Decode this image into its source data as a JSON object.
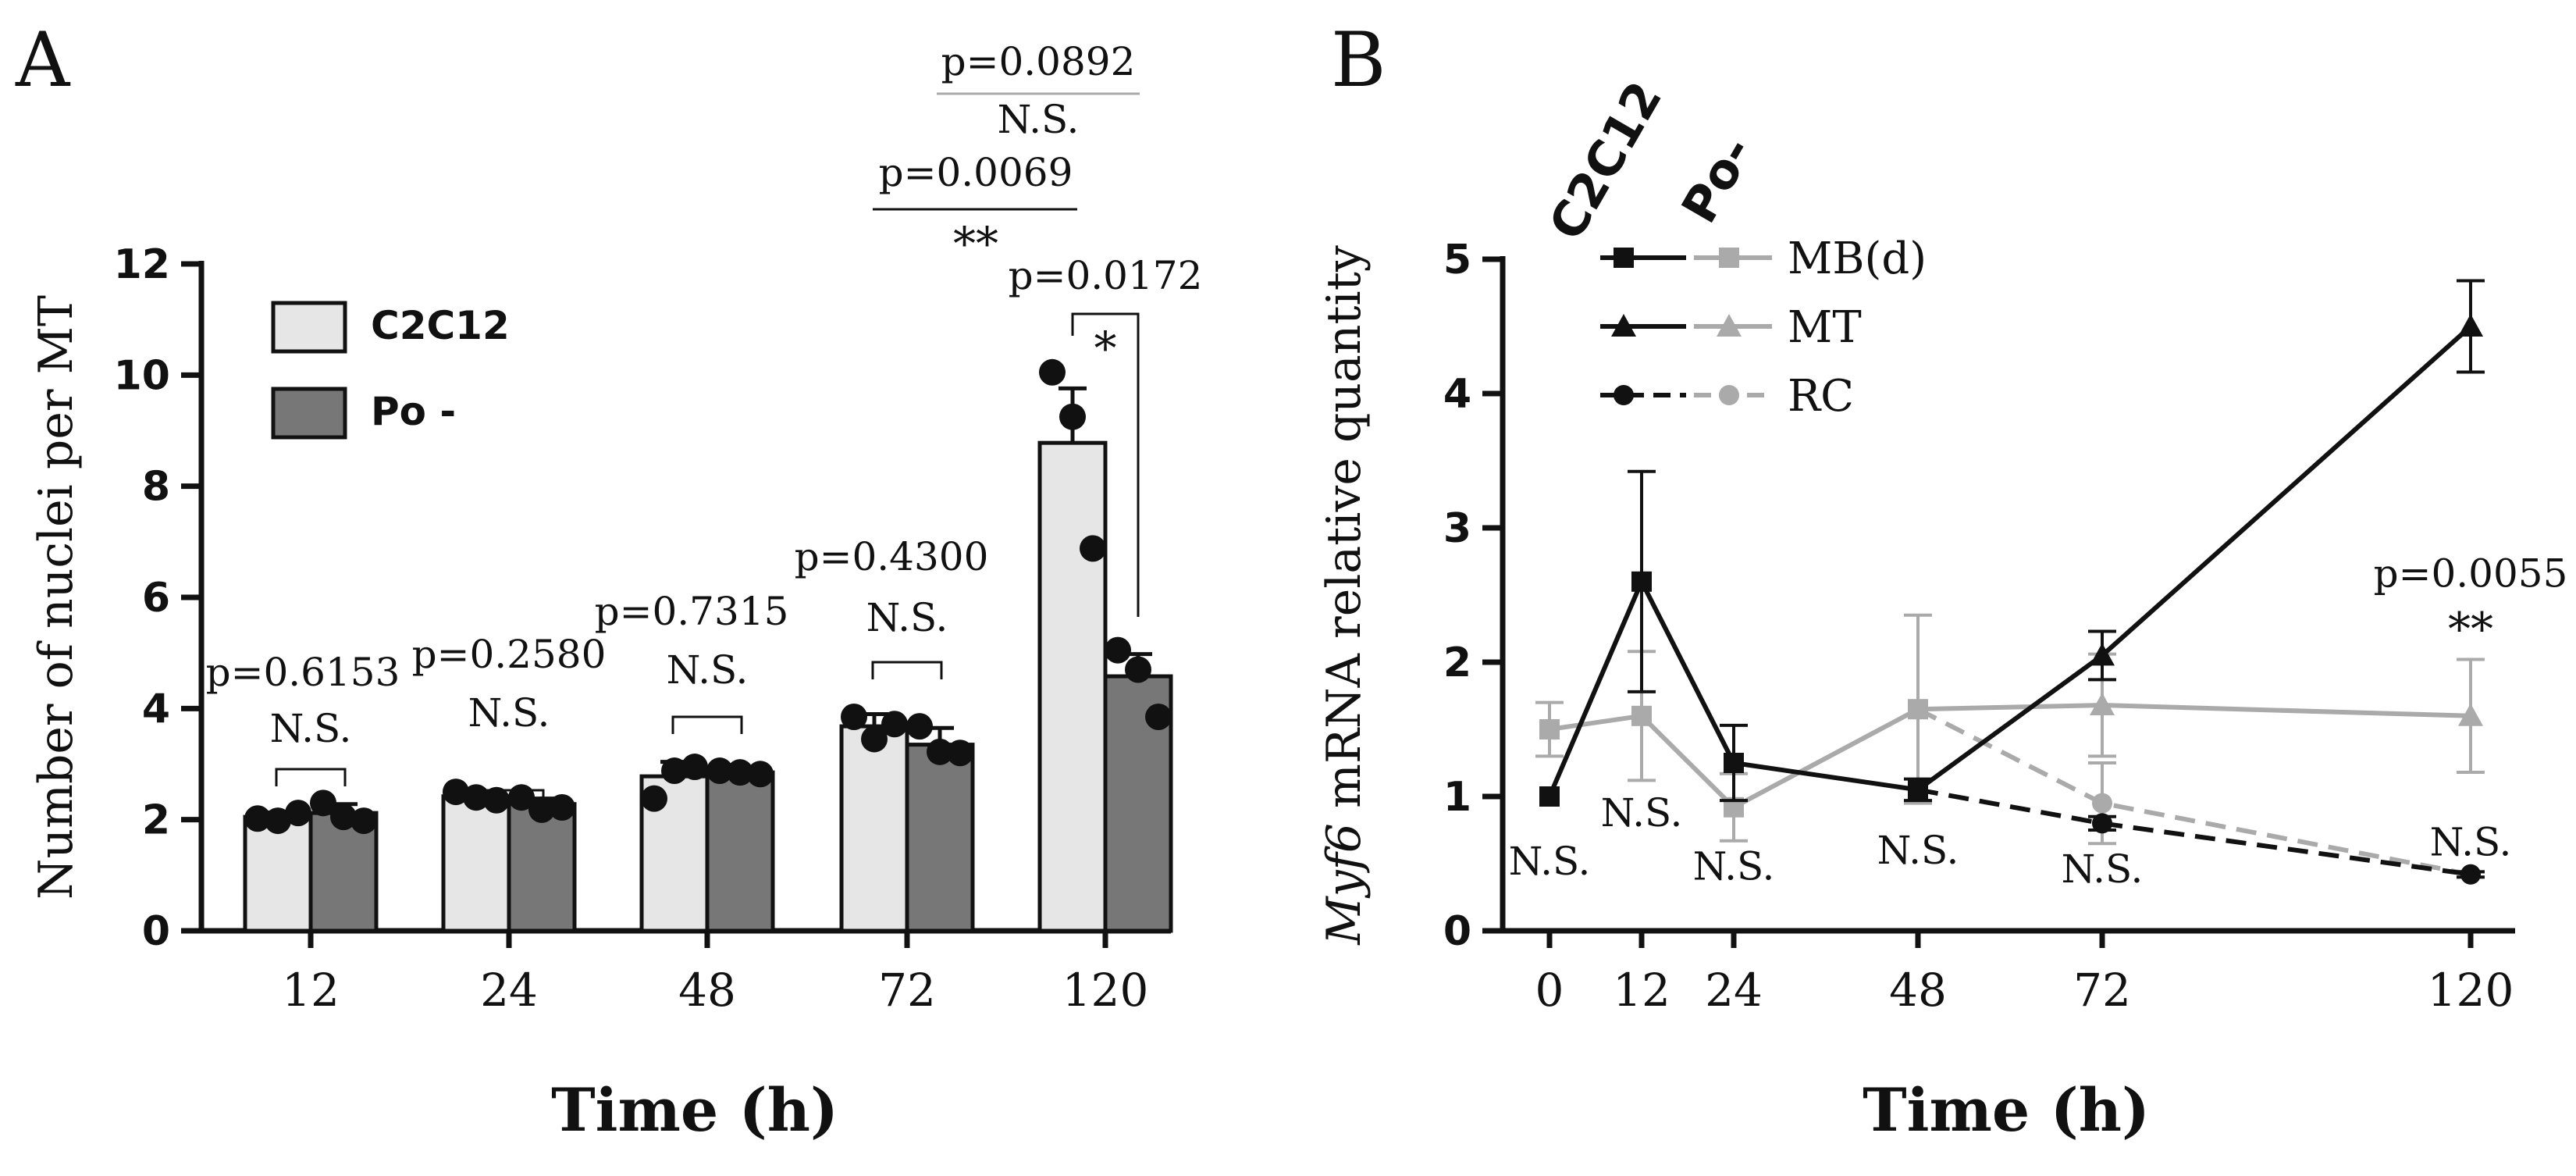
{
  "chart_data": [
    {
      "panel": "A",
      "type": "bar",
      "categories": [
        "12",
        "24",
        "48",
        "72",
        "120"
      ],
      "series": [
        {
          "name": "C2C12",
          "color": "#e6e6e6",
          "values": [
            2.05,
            2.42,
            2.78,
            3.68,
            8.78
          ],
          "sem": [
            0.08,
            0.08,
            0.26,
            0.22,
            0.98
          ],
          "points": [
            [
              2.02,
              1.98,
              2.12
            ],
            [
              2.5,
              2.4,
              2.35
            ],
            [
              2.38,
              2.88,
              2.95
            ],
            [
              3.85,
              3.45,
              3.72
            ],
            [
              10.05,
              9.25,
              6.88
            ]
          ]
        },
        {
          "name": "Po -",
          "color": "#777777",
          "values": [
            2.12,
            2.28,
            2.85,
            3.35,
            4.58
          ],
          "sem": [
            0.16,
            0.1,
            0.04,
            0.3,
            0.4
          ],
          "points": [
            [
              2.3,
              2.05,
              1.98
            ],
            [
              2.4,
              2.18,
              2.22
            ],
            [
              2.88,
              2.85,
              2.82
            ],
            [
              3.68,
              3.22,
              3.2
            ],
            [
              5.05,
              4.7,
              3.85
            ]
          ]
        }
      ],
      "xlabel": "Time (h)",
      "ylabel": "Number of nuclei per MT",
      "ylim": [
        0,
        12
      ],
      "yticks": [
        "0",
        "2",
        "4",
        "6",
        "8",
        "10",
        "12"
      ],
      "comparisons": [
        {
          "p": "p=0.6153",
          "sig": "N.S."
        },
        {
          "p": "p=0.2580",
          "sig": "N.S."
        },
        {
          "p": "p=0.7315",
          "sig": "N.S."
        },
        {
          "p": "p=0.4300",
          "sig": "N.S."
        },
        {
          "p": "p=0.0172",
          "sig": "*"
        }
      ],
      "top_comparisons": [
        {
          "p": "p=0.0892",
          "sig": "N.S."
        },
        {
          "p": "p=0.0069",
          "sig": "**"
        }
      ]
    },
    {
      "panel": "B",
      "type": "line",
      "x": [
        0,
        12,
        24,
        48,
        72,
        120
      ],
      "xticks": [
        "0",
        "12",
        "24",
        "48",
        "72",
        "120"
      ],
      "xlabel": "Time (h)",
      "ylabel_italic": "Myf6",
      "ylabel_rest": " mRNA relative quantity",
      "ylim": [
        0,
        5
      ],
      "yticks": [
        "0",
        "1",
        "2",
        "3",
        "4",
        "5"
      ],
      "legend_headers": [
        "C2C12",
        "Po-"
      ],
      "series": [
        {
          "name": "C2C12 MB(d)",
          "label": "MB(d)",
          "group": "C2C12",
          "marker": "square",
          "color": "#111111",
          "dashed": false,
          "points": [
            [
              0,
              1.0,
              0
            ],
            [
              12,
              2.6,
              0.82
            ],
            [
              24,
              1.25,
              0.28
            ],
            [
              48,
              1.05,
              0.08
            ]
          ]
        },
        {
          "name": "C2C12 MT",
          "label": "MT",
          "group": "C2C12",
          "marker": "triangle",
          "color": "#111111",
          "dashed": false,
          "points": [
            [
              48,
              1.05,
              0
            ],
            [
              72,
              2.05,
              0.18
            ],
            [
              120,
              4.5,
              0.34
            ]
          ]
        },
        {
          "name": "C2C12 RC",
          "label": "RC",
          "group": "C2C12",
          "marker": "circle",
          "color": "#111111",
          "dashed": true,
          "points": [
            [
              48,
              1.05,
              0
            ],
            [
              72,
              0.8,
              0.05
            ],
            [
              120,
              0.42,
              0.02
            ]
          ]
        },
        {
          "name": "Po- MB(d)",
          "label": "MB(d)",
          "group": "Po-",
          "marker": "square",
          "color": "#aaaaaa",
          "dashed": false,
          "points": [
            [
              0,
              1.5,
              0.2
            ],
            [
              12,
              1.6,
              0.48
            ],
            [
              24,
              0.92,
              0.25
            ],
            [
              48,
              1.65,
              0.7
            ]
          ]
        },
        {
          "name": "Po- MT",
          "label": "MT",
          "group": "Po-",
          "marker": "triangle",
          "color": "#aaaaaa",
          "dashed": false,
          "points": [
            [
              48,
              1.65,
              0
            ],
            [
              72,
              1.68,
              0.38
            ],
            [
              120,
              1.6,
              0.42
            ]
          ]
        },
        {
          "name": "Po- RC",
          "label": "RC",
          "group": "Po-",
          "marker": "circle",
          "color": "#aaaaaa",
          "dashed": true,
          "points": [
            [
              48,
              1.65,
              0
            ],
            [
              72,
              0.95,
              0.3
            ],
            [
              120,
              0.42,
              0.02
            ]
          ]
        }
      ],
      "annotations": [
        {
          "x": 0,
          "y": 0.42,
          "text": "N.S."
        },
        {
          "x": 12,
          "y": 0.78,
          "text": "N.S."
        },
        {
          "x": 24,
          "y": 0.38,
          "text": "N.S."
        },
        {
          "x": 48,
          "y": 0.5,
          "text": "N.S."
        },
        {
          "x": 72,
          "y": 0.36,
          "text": "N.S."
        },
        {
          "x": 120,
          "y": 0.56,
          "text": "N.S."
        },
        {
          "x": 120,
          "y": 2.13,
          "text": "**"
        },
        {
          "x": 120,
          "y": 2.56,
          "text": "p=0.0055"
        }
      ]
    }
  ],
  "panel_labels": {
    "a": "A",
    "b": "B"
  }
}
